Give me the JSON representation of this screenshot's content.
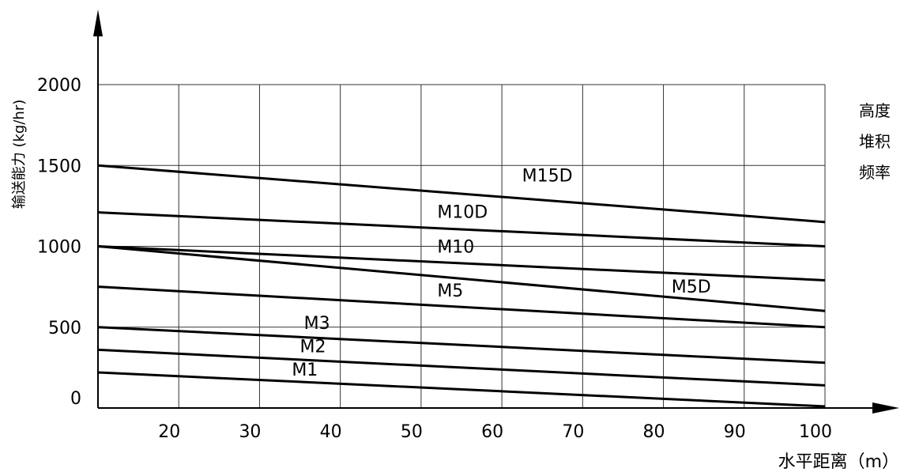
{
  "chart_data": {
    "type": "line",
    "title": "",
    "xlabel": "水平距离（m）",
    "ylabel": "输送能力 (kg/hr)",
    "xlim": [
      10,
      100
    ],
    "ylim": [
      0,
      2000
    ],
    "x_ticks": [
      20,
      30,
      40,
      50,
      60,
      70,
      80,
      90,
      100
    ],
    "y_ticks": [
      0,
      500,
      1000,
      1500,
      2000
    ],
    "grid": true,
    "side_notes": [
      "高度",
      "堆积",
      "频率"
    ],
    "series": [
      {
        "name": "M15D",
        "x": [
          10,
          100
        ],
        "y": [
          1500,
          1150
        ]
      },
      {
        "name": "M10D",
        "x": [
          10,
          100
        ],
        "y": [
          1210,
          1000
        ]
      },
      {
        "name": "M10",
        "x": [
          10,
          100
        ],
        "y": [
          1000,
          790
        ]
      },
      {
        "name": "M5D",
        "x": [
          10,
          100
        ],
        "y": [
          1000,
          600
        ]
      },
      {
        "name": "M5",
        "x": [
          10,
          100
        ],
        "y": [
          750,
          500
        ]
      },
      {
        "name": "M3",
        "x": [
          10,
          100
        ],
        "y": [
          500,
          280
        ]
      },
      {
        "name": "M2",
        "x": [
          10,
          100
        ],
        "y": [
          360,
          140
        ]
      },
      {
        "name": "M1",
        "x": [
          10,
          100
        ],
        "y": [
          220,
          10
        ]
      }
    ],
    "label_positions": [
      {
        "name": "M15D",
        "x": 62.5,
        "y": 1400
      },
      {
        "name": "M10D",
        "x": 52,
        "y": 1175
      },
      {
        "name": "M10",
        "x": 52,
        "y": 960
      },
      {
        "name": "M5D",
        "x": 81,
        "y": 715
      },
      {
        "name": "M5",
        "x": 52,
        "y": 690
      },
      {
        "name": "M3",
        "x": 35.5,
        "y": 490
      },
      {
        "name": "M2",
        "x": 35,
        "y": 345
      },
      {
        "name": "M1",
        "x": 34,
        "y": 200
      }
    ]
  }
}
